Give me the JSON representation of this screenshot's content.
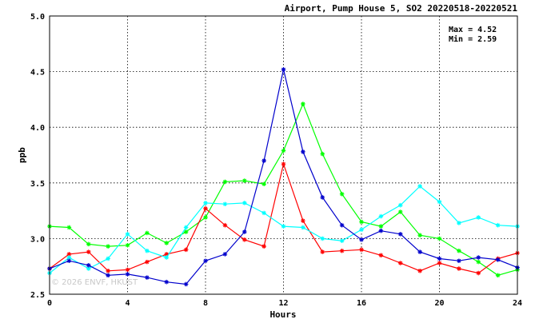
{
  "chart_data": {
    "type": "line",
    "title": "Airport, Pump House 5, SO2 20220518-20220521",
    "xlabel": "Hours",
    "ylabel": "ppb",
    "xlim": [
      0,
      24
    ],
    "ylim": [
      2.5,
      5.0
    ],
    "xticks": [
      0,
      4,
      8,
      12,
      16,
      20,
      24
    ],
    "yticks": [
      2.5,
      3.0,
      3.5,
      4.0,
      4.5,
      5.0
    ],
    "ytick_labels": [
      "2.5",
      "3.0",
      "3.5",
      "4.0",
      "4.5",
      "5.0"
    ],
    "grid": true,
    "stats": {
      "max_label": "Max = 4.52",
      "min_label": "Min = 2.59"
    },
    "watermark": "© 2026  ENVF, HKUST",
    "x": [
      0,
      1,
      2,
      3,
      4,
      5,
      6,
      7,
      8,
      9,
      10,
      11,
      12,
      13,
      14,
      15,
      16,
      17,
      18,
      19,
      20,
      21,
      22,
      23,
      24
    ],
    "series": [
      {
        "color": "#00ff00",
        "values": [
          3.11,
          3.1,
          2.95,
          2.93,
          2.94,
          3.05,
          2.96,
          3.06,
          3.19,
          3.51,
          3.52,
          3.49,
          3.79,
          4.21,
          3.76,
          3.4,
          3.15,
          3.11,
          3.24,
          3.03,
          3.0,
          2.89,
          2.79,
          2.67,
          2.72
        ]
      },
      {
        "color": "#ff0000",
        "values": [
          2.73,
          2.86,
          2.88,
          2.71,
          2.72,
          2.79,
          2.86,
          2.9,
          3.27,
          3.12,
          2.99,
          2.93,
          3.67,
          3.16,
          2.88,
          2.89,
          2.9,
          2.85,
          2.78,
          2.71,
          2.78,
          2.73,
          2.69,
          2.82,
          2.87
        ]
      },
      {
        "color": "#00ffff",
        "values": [
          2.69,
          2.83,
          2.73,
          2.82,
          3.04,
          2.89,
          2.83,
          3.1,
          3.32,
          3.31,
          3.32,
          3.23,
          3.11,
          3.1,
          3.0,
          2.98,
          3.08,
          3.2,
          3.3,
          3.47,
          3.33,
          3.14,
          3.19,
          3.12,
          3.11
        ]
      },
      {
        "color": "#0000cc",
        "values": [
          2.73,
          2.8,
          2.76,
          2.67,
          2.68,
          2.65,
          2.61,
          2.59,
          2.8,
          2.86,
          3.06,
          3.7,
          4.52,
          3.78,
          3.37,
          3.12,
          2.99,
          3.07,
          3.04,
          2.88,
          2.82,
          2.8,
          2.83,
          2.81,
          2.74
        ]
      }
    ]
  }
}
